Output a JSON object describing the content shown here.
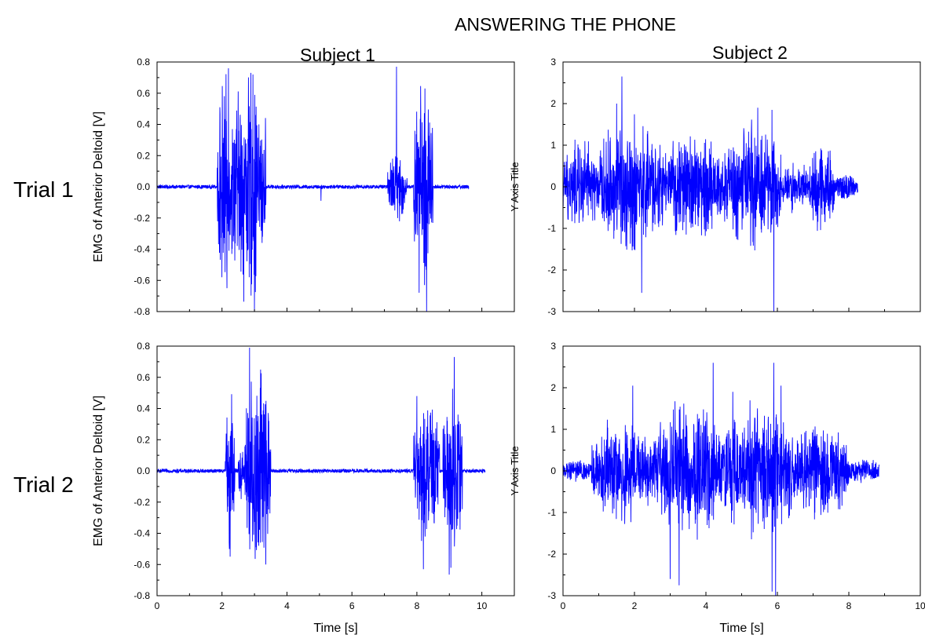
{
  "figure": {
    "title": "ANSWERING THE PHONE",
    "column_titles": [
      "Subject 1",
      "Subject 2"
    ],
    "row_titles": [
      "Trial 1",
      "Trial 2"
    ],
    "line_color": "#0000ff"
  },
  "chart_data": [
    {
      "type": "line",
      "panel": "Subject 1 / Trial 1",
      "xlabel": "",
      "ylabel": "EMG of Anterior Deltoid [V]",
      "xlim": [
        0,
        11
      ],
      "ylim": [
        -0.8,
        0.8
      ],
      "yticks": [
        -0.8,
        -0.6,
        -0.4,
        -0.2,
        0.0,
        0.2,
        0.4,
        0.6,
        0.8
      ],
      "ytick_labels": [
        "-0.8",
        "-0.6",
        "-0.4",
        "-0.2",
        "0.0",
        "0.2",
        "0.4",
        "0.6",
        "0.8"
      ],
      "xticks": [
        0,
        2,
        4,
        6,
        8,
        10
      ],
      "xtick_labels": [],
      "series": [
        {
          "color": "#0000ff",
          "x_end": 9.6,
          "baseline_amplitude": 0.012,
          "bursts": [
            {
              "start": 1.85,
              "end": 2.25,
              "amp": 0.65
            },
            {
              "start": 2.25,
              "end": 3.35,
              "amp": 0.72
            },
            {
              "start": 7.1,
              "end": 7.7,
              "amp": 0.22
            },
            {
              "start": 7.9,
              "end": 8.5,
              "amp": 0.68
            }
          ],
          "spikes": [
            {
              "x": 2.2,
              "y": 0.76
            },
            {
              "x": 2.15,
              "y": -0.65
            },
            {
              "x": 2.95,
              "y": 0.72
            },
            {
              "x": 3.0,
              "y": -0.8
            },
            {
              "x": 7.37,
              "y": 0.77
            },
            {
              "x": 7.37,
              "y": -0.8
            },
            {
              "x": 8.3,
              "y": -0.8
            },
            {
              "x": 8.25,
              "y": 0.63
            },
            {
              "x": 5.05,
              "y": -0.09
            }
          ]
        }
      ]
    },
    {
      "type": "line",
      "panel": "Subject 2 / Trial 1",
      "xlabel": "",
      "ylabel": "Y Axis Title",
      "xlim": [
        0,
        10
      ],
      "ylim": [
        -3,
        3
      ],
      "yticks": [
        -3,
        -2,
        -1,
        0,
        1,
        2,
        3
      ],
      "ytick_labels": [
        "-3",
        "-2",
        "-1",
        "0",
        "1",
        "2",
        "3"
      ],
      "xticks": [
        0,
        2,
        4,
        6,
        8,
        10
      ],
      "xtick_labels": [],
      "series": [
        {
          "color": "#0000ff",
          "x_end": 8.25,
          "baseline_amplitude": 0.15,
          "bursts": [
            {
              "start": 0.0,
              "end": 1.0,
              "amp": 1.1
            },
            {
              "start": 1.0,
              "end": 2.8,
              "amp": 1.6
            },
            {
              "start": 2.8,
              "end": 4.5,
              "amp": 1.3
            },
            {
              "start": 4.5,
              "end": 6.1,
              "amp": 1.5
            },
            {
              "start": 6.1,
              "end": 6.9,
              "amp": 0.6
            },
            {
              "start": 6.9,
              "end": 7.6,
              "amp": 1.2
            },
            {
              "start": 7.6,
              "end": 8.25,
              "amp": 0.3
            }
          ],
          "spikes": [
            {
              "x": 1.65,
              "y": 2.65
            },
            {
              "x": 5.9,
              "y": -3.0
            },
            {
              "x": 5.85,
              "y": 1.85
            },
            {
              "x": 5.45,
              "y": 1.9
            },
            {
              "x": 2.2,
              "y": -2.55
            },
            {
              "x": 1.5,
              "y": 2.0
            }
          ]
        }
      ]
    },
    {
      "type": "line",
      "panel": "Subject 1 / Trial 2",
      "xlabel": "Time [s]",
      "ylabel": "EMG of Anterior Deltoid [V]",
      "xlim": [
        0,
        11
      ],
      "ylim": [
        -0.8,
        0.8
      ],
      "yticks": [
        -0.8,
        -0.6,
        -0.4,
        -0.2,
        0.0,
        0.2,
        0.4,
        0.6,
        0.8
      ],
      "ytick_labels": [
        "-0.8",
        "-0.6",
        "-0.4",
        "-0.2",
        "0.0",
        "0.2",
        "0.4",
        "0.6",
        "0.8"
      ],
      "xticks": [
        0,
        2,
        4,
        6,
        8,
        10
      ],
      "xtick_labels": [
        "0",
        "2",
        "4",
        "6",
        "8",
        "10"
      ],
      "series": [
        {
          "color": "#0000ff",
          "x_end": 10.1,
          "baseline_amplitude": 0.012,
          "bursts": [
            {
              "start": 2.1,
              "end": 2.4,
              "amp": 0.5
            },
            {
              "start": 2.5,
              "end": 2.7,
              "amp": 0.2
            },
            {
              "start": 2.7,
              "end": 3.5,
              "amp": 0.7
            },
            {
              "start": 7.9,
              "end": 8.7,
              "amp": 0.45
            },
            {
              "start": 8.8,
              "end": 9.4,
              "amp": 0.6
            }
          ],
          "spikes": [
            {
              "x": 2.85,
              "y": 0.79
            },
            {
              "x": 2.85,
              "y": -0.66
            },
            {
              "x": 3.35,
              "y": -0.6
            },
            {
              "x": 9.15,
              "y": 0.73
            },
            {
              "x": 8.2,
              "y": -0.63
            },
            {
              "x": 2.25,
              "y": -0.55
            },
            {
              "x": 8.0,
              "y": 0.48
            }
          ]
        }
      ]
    },
    {
      "type": "line",
      "panel": "Subject 2 / Trial 2",
      "xlabel": "Time [s]",
      "ylabel": "Y Axis Title",
      "xlim": [
        0,
        10
      ],
      "ylim": [
        -3,
        3
      ],
      "yticks": [
        -3,
        -2,
        -1,
        0,
        1,
        2,
        3
      ],
      "ytick_labels": [
        "-3",
        "-2",
        "-1",
        "0",
        "1",
        "2",
        "3"
      ],
      "xticks": [
        0,
        2,
        4,
        6,
        8,
        10
      ],
      "xtick_labels": [
        "0",
        "2",
        "4",
        "6",
        "8",
        "10"
      ],
      "series": [
        {
          "color": "#0000ff",
          "x_end": 8.85,
          "baseline_amplitude": 0.12,
          "bursts": [
            {
              "start": 0.0,
              "end": 0.8,
              "amp": 0.25
            },
            {
              "start": 0.8,
              "end": 2.5,
              "amp": 1.2
            },
            {
              "start": 2.5,
              "end": 4.5,
              "amp": 1.6
            },
            {
              "start": 4.5,
              "end": 6.5,
              "amp": 1.6
            },
            {
              "start": 6.5,
              "end": 8.0,
              "amp": 1.1
            },
            {
              "start": 8.0,
              "end": 8.85,
              "amp": 0.3
            }
          ],
          "spikes": [
            {
              "x": 4.2,
              "y": 2.6
            },
            {
              "x": 5.9,
              "y": 2.6
            },
            {
              "x": 3.25,
              "y": -2.75
            },
            {
              "x": 5.85,
              "y": -2.9
            },
            {
              "x": 5.95,
              "y": -3.0
            },
            {
              "x": 3.0,
              "y": -2.6
            },
            {
              "x": 6.1,
              "y": 2.05
            },
            {
              "x": 1.95,
              "y": 2.05
            },
            {
              "x": 4.75,
              "y": 1.9
            }
          ]
        }
      ]
    }
  ]
}
